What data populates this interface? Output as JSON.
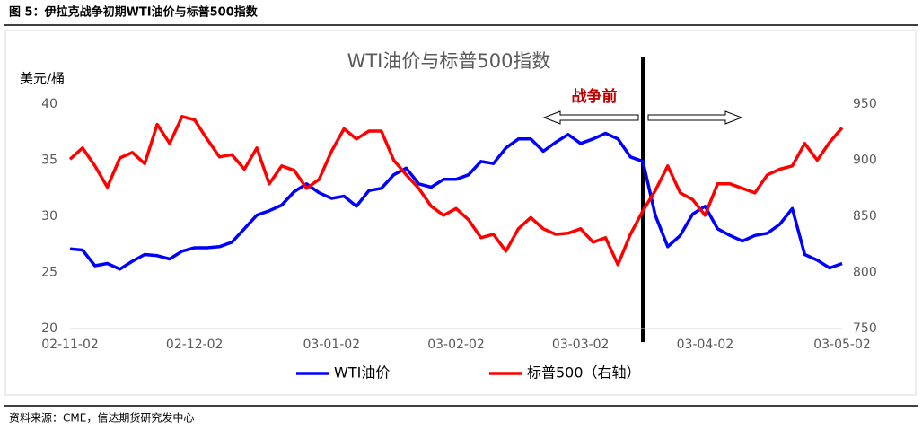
{
  "figure_title": "图 5：伊拉克战争初期WTI油价与标普500指数",
  "source": "资料来源：CME，信达期货研究发中心",
  "chart_data": {
    "type": "line",
    "title": "WTI油价与标普500指数",
    "y_label": "美元/桶",
    "annotation": "战争前",
    "categories": [
      "02-11-02",
      null,
      null,
      null,
      null,
      null,
      null,
      null,
      null,
      null,
      "02-12-02",
      null,
      null,
      null,
      null,
      null,
      null,
      null,
      null,
      null,
      null,
      "03-01-02",
      null,
      null,
      null,
      null,
      null,
      null,
      null,
      null,
      null,
      "03-02-02",
      null,
      null,
      null,
      null,
      null,
      null,
      null,
      null,
      null,
      "03-03-02",
      null,
      null,
      null,
      null,
      null,
      null,
      null,
      null,
      null,
      "03-04-02",
      null,
      null,
      null,
      null,
      null,
      null,
      null,
      null,
      null,
      null,
      "03-05-02"
    ],
    "series": [
      {
        "name": "WTI油价",
        "color": "#0000ff",
        "values": [
          27.1,
          27.0,
          25.6,
          25.8,
          25.3,
          26.0,
          26.6,
          26.5,
          26.2,
          26.9,
          27.2,
          27.2,
          27.3,
          27.7,
          28.9,
          30.1,
          30.5,
          31.0,
          32.2,
          32.9,
          32.1,
          31.6,
          31.8,
          30.9,
          32.3,
          32.5,
          33.7,
          34.3,
          32.9,
          32.6,
          33.3,
          33.3,
          33.7,
          34.9,
          34.7,
          36.1,
          36.9,
          36.9,
          35.8,
          36.6,
          37.3,
          36.5,
          36.9,
          37.4,
          36.9,
          35.3,
          34.9,
          30.1,
          27.3,
          28.3,
          30.2,
          30.9,
          28.9,
          28.3,
          27.8,
          28.3,
          28.5,
          29.3,
          30.7,
          26.6,
          26.1,
          25.4,
          25.8
        ]
      },
      {
        "name": "标普500（右轴）",
        "color": "#ff0000",
        "axis": "y2",
        "values": [
          901,
          911,
          895,
          876,
          902,
          907,
          897,
          932,
          915,
          939,
          936,
          919,
          903,
          905,
          892,
          911,
          879,
          895,
          891,
          875,
          883,
          908,
          928,
          919,
          926,
          926,
          900,
          887,
          875,
          859,
          851,
          857,
          847,
          831,
          834,
          819,
          839,
          849,
          839,
          834,
          835,
          839,
          827,
          831,
          807,
          834,
          855,
          873,
          895,
          871,
          865,
          851,
          879,
          879,
          875,
          871,
          887,
          892,
          895,
          915,
          900,
          916,
          929
        ]
      }
    ],
    "ylim": [
      20,
      40
    ],
    "yticks": [
      20,
      25,
      30,
      35,
      40
    ],
    "y2lim": [
      750,
      950
    ],
    "y2ticks": [
      750,
      800,
      850,
      900,
      950
    ]
  }
}
